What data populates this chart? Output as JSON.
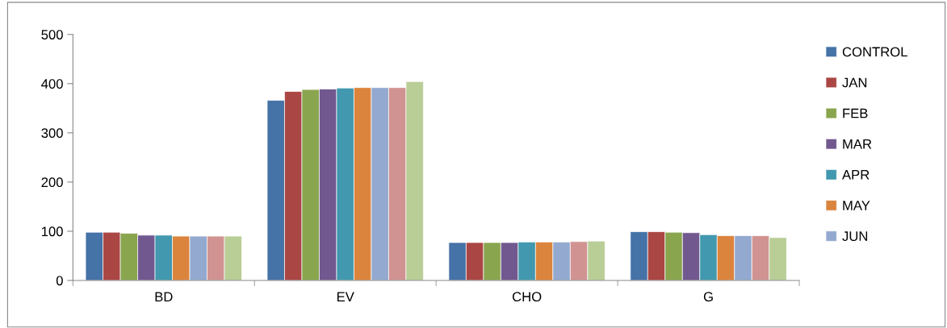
{
  "chart_data": {
    "type": "bar",
    "categories": [
      "BD",
      "EV",
      "CHO",
      "G"
    ],
    "series": [
      {
        "name": "CONTROL",
        "color": "#4572a7",
        "values": [
          98,
          366,
          77,
          99
        ]
      },
      {
        "name": "JAN",
        "color": "#aa4643",
        "values": [
          98,
          384,
          77,
          99
        ]
      },
      {
        "name": "FEB",
        "color": "#89a54e",
        "values": [
          96,
          388,
          77,
          98
        ]
      },
      {
        "name": "MAR",
        "color": "#71588f",
        "values": [
          92,
          389,
          77,
          97
        ]
      },
      {
        "name": "APR",
        "color": "#4198af",
        "values": [
          92,
          391,
          78,
          93
        ]
      },
      {
        "name": "MAY",
        "color": "#db843d",
        "values": [
          90,
          392,
          78,
          91
        ]
      },
      {
        "name": "JUN",
        "color": "#93a9cf",
        "values": [
          90,
          392,
          78,
          91
        ]
      },
      {
        "color": "#d19392",
        "values": [
          90,
          392,
          79,
          91
        ]
      },
      {
        "color": "#b9cd96",
        "values": [
          90,
          404,
          80,
          87
        ]
      }
    ],
    "ylim": [
      0,
      500
    ],
    "yticks": [
      0,
      100,
      200,
      300,
      400,
      500
    ],
    "grid": false,
    "legend": "right"
  }
}
